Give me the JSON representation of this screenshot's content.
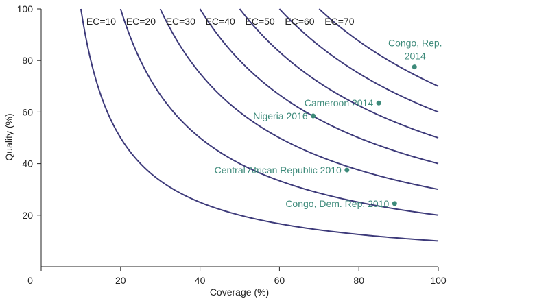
{
  "chart_data": {
    "type": "line",
    "xlabel": "Coverage (%)",
    "ylabel": "Quality (%)",
    "xlim": [
      0,
      100
    ],
    "ylim": [
      0,
      100
    ],
    "x_ticks": [
      0,
      20,
      40,
      60,
      80,
      100
    ],
    "y_ticks": [
      20,
      40,
      60,
      80,
      100
    ],
    "curve_color": "#3d3a7a",
    "point_color": "#3d8a7a",
    "series": [
      {
        "name": "EC=10",
        "ec": 10
      },
      {
        "name": "EC=20",
        "ec": 20
      },
      {
        "name": "EC=30",
        "ec": 30
      },
      {
        "name": "EC=40",
        "ec": 40
      },
      {
        "name": "EC=50",
        "ec": 50
      },
      {
        "name": "EC=60",
        "ec": 60
      },
      {
        "name": "EC=70",
        "ec": 70
      }
    ],
    "points": [
      {
        "label": [
          "Congo, Rep.",
          "2014"
        ],
        "x": 94,
        "y": 77.5
      },
      {
        "label": [
          "Cameroon 2014"
        ],
        "x": 85,
        "y": 63.5
      },
      {
        "label": [
          "Nigeria 2016"
        ],
        "x": 68.5,
        "y": 58.5
      },
      {
        "label": [
          "Central African Republic 2010"
        ],
        "x": 77,
        "y": 37.5
      },
      {
        "label": [
          "Congo, Dem. Rep. 2010"
        ],
        "x": 89,
        "y": 24.5
      }
    ]
  }
}
